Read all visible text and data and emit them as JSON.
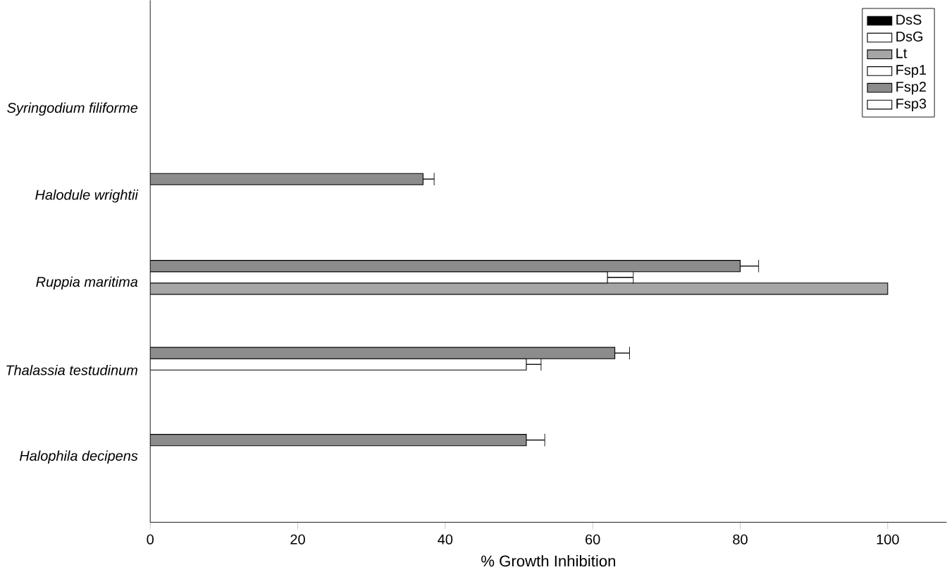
{
  "chart_data": {
    "type": "bar",
    "orientation": "horizontal",
    "xlabel": "% Growth Inhibition",
    "categories": [
      "Syringodium filiforme",
      "Halodule wrightii",
      "Ruppia maritima",
      "Thalassia testudinum",
      "Halophila decipens"
    ],
    "series": [
      {
        "name": "DsS",
        "color": "#000000",
        "values": [
          null,
          null,
          null,
          null,
          null
        ]
      },
      {
        "name": "DsG",
        "color": "#ffffff",
        "values": [
          null,
          null,
          null,
          null,
          null
        ]
      },
      {
        "name": "Lt",
        "color": "#a6a6a6",
        "values": [
          null,
          null,
          100,
          null,
          null
        ]
      },
      {
        "name": "Fsp1",
        "color": "#ffffff",
        "values": [
          null,
          null,
          62,
          51,
          null
        ],
        "errors": [
          null,
          null,
          3.5,
          2,
          null
        ]
      },
      {
        "name": "Fsp2",
        "color": "#8c8c8c",
        "values": [
          null,
          37,
          80,
          63,
          51
        ],
        "errors": [
          null,
          1.5,
          2.5,
          2,
          2.5
        ]
      },
      {
        "name": "Fsp3",
        "color": "#ffffff",
        "values": [
          null,
          null,
          null,
          null,
          null
        ]
      }
    ],
    "xlim": [
      0,
      108
    ],
    "xticks": [
      0,
      20,
      40,
      60,
      80,
      100
    ],
    "legend": "top right"
  }
}
